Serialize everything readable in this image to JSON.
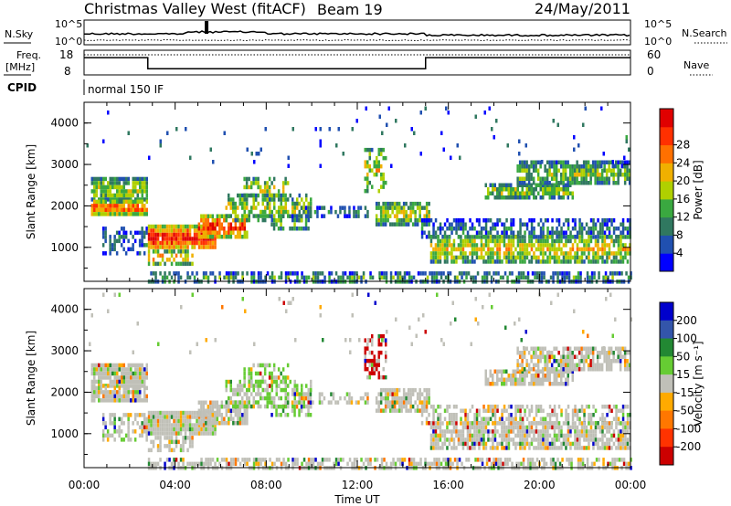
{
  "header": {
    "station": "Christmas Valley West (fitACF)",
    "beam": "Beam 19",
    "date": "24/May/2011"
  },
  "noise_panel": {
    "left_label": "N.Sky",
    "right_label": "N.Search",
    "tick_top": "10^5",
    "tick_bottom": "10^0",
    "series": [
      {
        "name": "N.Sky",
        "style": "solid"
      },
      {
        "name": "N.Search",
        "style": "dotted"
      }
    ]
  },
  "freq_panel": {
    "left_label_line1": "Freq.",
    "left_label_line2": "[MHz]",
    "left_ticks": [
      "18",
      "8"
    ],
    "right_label": "Nave",
    "right_ticks": [
      "60",
      "0"
    ],
    "freq_segments": [
      {
        "from_hour": 0,
        "to_hour": 2.8,
        "mhz": 15
      },
      {
        "from_hour": 2.8,
        "to_hour": 15.0,
        "mhz": 10.5
      },
      {
        "from_hour": 15.0,
        "to_hour": 24,
        "mhz": 15
      }
    ]
  },
  "cpid": {
    "label": "CPID",
    "value": "normal 150 IF"
  },
  "chart_data": [
    {
      "type": "heatmap",
      "parameter": "Power",
      "xlabel": "",
      "ylabel": "Slant Range [km]",
      "xlim_hours": [
        0,
        24
      ],
      "ylim_km": [
        180,
        4500
      ],
      "y_ticks": [
        "1000",
        "2000",
        "3000",
        "4000"
      ],
      "colorbar": {
        "label": "Power [dB]",
        "ticks": [
          "4",
          "8",
          "12",
          "16",
          "20",
          "24",
          "28"
        ],
        "colors": [
          "#0000ff",
          "#2050b0",
          "#307860",
          "#3aa840",
          "#b0d000",
          "#f0b000",
          "#ff7000",
          "#ff3000",
          "#e00000"
        ]
      }
    },
    {
      "type": "heatmap",
      "parameter": "Velocity",
      "xlabel": "Time UT",
      "ylabel": "Slant Range [km]",
      "xlim_hours": [
        0,
        24
      ],
      "ylim_km": [
        180,
        4500
      ],
      "x_ticks": [
        "00:00",
        "04:00",
        "08:00",
        "12:00",
        "16:00",
        "20:00",
        "00:00"
      ],
      "y_ticks": [
        "1000",
        "2000",
        "3000",
        "4000"
      ],
      "colorbar": {
        "label": "Velocity [m s⁻¹]",
        "ticks": [
          "200",
          "100",
          "50",
          "15",
          "-15",
          "-50",
          "-100",
          "-200"
        ],
        "colors": [
          "#0000cc",
          "#3355aa",
          "#228833",
          "#66cc33",
          "#c0c0b8",
          "#ffaa00",
          "#ff7700",
          "#ff3300",
          "#cc0000"
        ]
      }
    }
  ]
}
